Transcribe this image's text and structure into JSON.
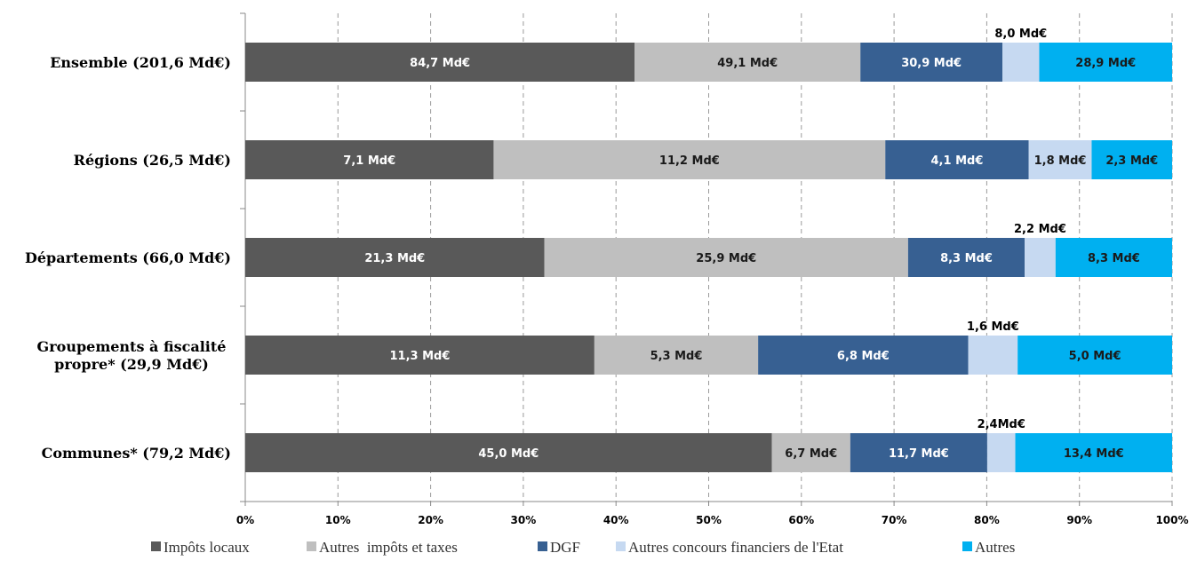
{
  "chart_data": {
    "type": "bar",
    "orientation": "horizontal",
    "stacked": "percent",
    "categories": [
      "Ensemble (201,6 Md€)",
      "Régions (26,5 Md€)",
      "Départements (66,0 Md€)",
      [
        "Groupements à fiscalité",
        "propre* (29,9 Md€)"
      ],
      "Communes* (79,2 Md€)"
    ],
    "series": [
      {
        "name": "Impôts locaux",
        "color": "#595959",
        "values": [
          84.7,
          7.1,
          21.3,
          11.3,
          45.0
        ],
        "labels": [
          "84,7 Md€",
          "7,1 Md€",
          "21,3 Md€",
          "11,3 Md€",
          "45,0 Md€"
        ]
      },
      {
        "name": "Autres  impôts et taxes",
        "color": "#bfbfbf",
        "values": [
          49.1,
          11.2,
          25.9,
          5.3,
          6.7
        ],
        "labels": [
          "49,1 Md€",
          "11,2 Md€",
          "25,9 Md€",
          "5,3 Md€",
          "6,7 Md€"
        ]
      },
      {
        "name": "DGF",
        "color": "#376092",
        "values": [
          30.9,
          4.1,
          8.3,
          6.8,
          11.7
        ],
        "labels": [
          "30,9 Md€",
          "4,1 Md€",
          "8,3 Md€",
          "6,8 Md€",
          "11,7 Md€"
        ]
      },
      {
        "name": "Autres concours financiers de l'Etat",
        "color": "#c6d9f1",
        "values": [
          8.0,
          1.8,
          2.2,
          1.6,
          2.4
        ],
        "labels": [
          "8,0 Md€",
          "1,8 Md€",
          "2,2 Md€",
          "1,6 Md€",
          "2,4Md€"
        ],
        "label_above": [
          true,
          false,
          true,
          true,
          true
        ]
      },
      {
        "name": "Autres",
        "color": "#00b0f0",
        "values": [
          28.9,
          2.3,
          8.3,
          5.0,
          13.4
        ],
        "labels": [
          "28,9 Md€",
          "2,3 Md€",
          "8,3 Md€",
          "5,0 Md€",
          "13,4 Md€"
        ]
      }
    ],
    "x_ticks": [
      "0%",
      "10%",
      "20%",
      "30%",
      "40%",
      "50%",
      "60%",
      "70%",
      "80%",
      "90%",
      "100%"
    ],
    "xlim": [
      0,
      100
    ],
    "grid": "vertical dashed",
    "legend_position": "bottom"
  }
}
